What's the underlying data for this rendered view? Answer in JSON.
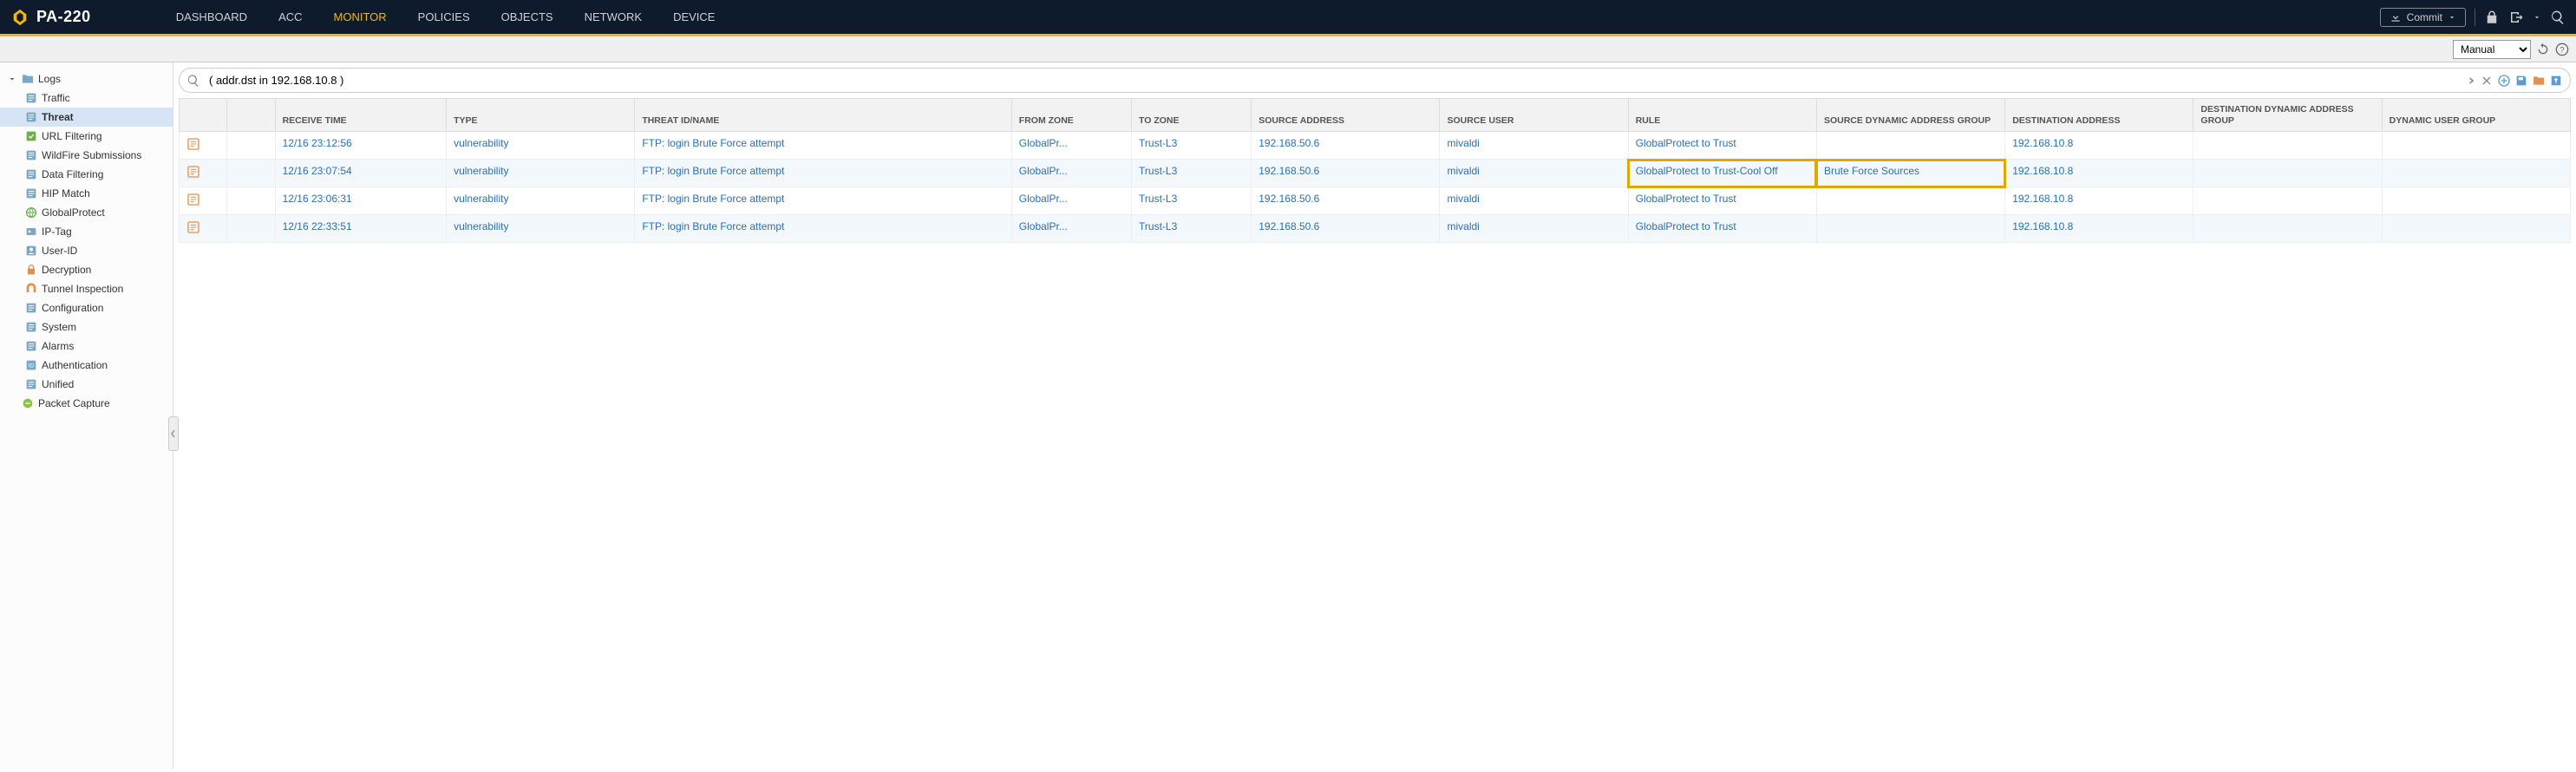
{
  "brand": {
    "name": "PA-220"
  },
  "nav": {
    "items": [
      "DASHBOARD",
      "ACC",
      "MONITOR",
      "POLICIES",
      "OBJECTS",
      "NETWORK",
      "DEVICE"
    ],
    "active_index": 2,
    "commit_label": "Commit"
  },
  "toolbar": {
    "mode": "Manual"
  },
  "sidebar": {
    "root": "Logs",
    "items": [
      {
        "label": "Traffic",
        "icon": "log",
        "selected": false
      },
      {
        "label": "Threat",
        "icon": "log",
        "selected": true
      },
      {
        "label": "URL Filtering",
        "icon": "url",
        "selected": false
      },
      {
        "label": "WildFire Submissions",
        "icon": "log",
        "selected": false
      },
      {
        "label": "Data Filtering",
        "icon": "log",
        "selected": false
      },
      {
        "label": "HIP Match",
        "icon": "log",
        "selected": false
      },
      {
        "label": "GlobalProtect",
        "icon": "globe",
        "selected": false
      },
      {
        "label": "IP-Tag",
        "icon": "iptag",
        "selected": false
      },
      {
        "label": "User-ID",
        "icon": "user",
        "selected": false
      },
      {
        "label": "Decryption",
        "icon": "lock",
        "selected": false
      },
      {
        "label": "Tunnel Inspection",
        "icon": "tunnel",
        "selected": false
      },
      {
        "label": "Configuration",
        "icon": "log",
        "selected": false
      },
      {
        "label": "System",
        "icon": "log",
        "selected": false
      },
      {
        "label": "Alarms",
        "icon": "log",
        "selected": false
      },
      {
        "label": "Authentication",
        "icon": "auth",
        "selected": false
      },
      {
        "label": "Unified",
        "icon": "log",
        "selected": false
      }
    ],
    "packet_capture": "Packet Capture"
  },
  "filter": {
    "query": "( addr.dst in 192.168.10.8 )"
  },
  "table": {
    "columns": [
      "",
      "",
      "RECEIVE TIME",
      "TYPE",
      "THREAT ID/NAME",
      "FROM ZONE",
      "TO ZONE",
      "SOURCE ADDRESS",
      "SOURCE USER",
      "RULE",
      "SOURCE DYNAMIC ADDRESS GROUP",
      "DESTINATION ADDRESS",
      "DESTINATION DYNAMIC ADDRESS GROUP",
      "DYNAMIC USER GROUP"
    ],
    "col_widths": [
      "28px",
      "28px",
      "100px",
      "110px",
      "220px",
      "70px",
      "70px",
      "110px",
      "110px",
      "110px",
      "110px",
      "110px",
      "110px",
      "110px"
    ],
    "rows": [
      {
        "receive": "12/16 23:12:56",
        "type": "vulnerability",
        "threat": "FTP: login Brute Force attempt",
        "from": "GlobalPr...",
        "to": "Trust-L3",
        "src": "192.168.50.6",
        "user": "mivaldi",
        "rule": "GlobalProtect to Trust",
        "sdag": "",
        "dst": "192.168.10.8",
        "ddag": "",
        "dug": "",
        "hi": false
      },
      {
        "receive": "12/16 23:07:54",
        "type": "vulnerability",
        "threat": "FTP: login Brute Force attempt",
        "from": "GlobalPr...",
        "to": "Trust-L3",
        "src": "192.168.50.6",
        "user": "mivaldi",
        "rule": "GlobalProtect to Trust-Cool Off",
        "sdag": "Brute Force Sources",
        "dst": "192.168.10.8",
        "ddag": "",
        "dug": "",
        "hi": true
      },
      {
        "receive": "12/16 23:06:31",
        "type": "vulnerability",
        "threat": "FTP: login Brute Force attempt",
        "from": "GlobalPr...",
        "to": "Trust-L3",
        "src": "192.168.50.6",
        "user": "mivaldi",
        "rule": "GlobalProtect to Trust",
        "sdag": "",
        "dst": "192.168.10.8",
        "ddag": "",
        "dug": "",
        "hi": false
      },
      {
        "receive": "12/16 22:33:51",
        "type": "vulnerability",
        "threat": "FTP: login Brute Force attempt",
        "from": "GlobalPr...",
        "to": "Trust-L3",
        "src": "192.168.50.6",
        "user": "mivaldi",
        "rule": "GlobalProtect to Trust",
        "sdag": "",
        "dst": "192.168.10.8",
        "ddag": "",
        "dug": "",
        "hi": false
      }
    ]
  },
  "colors": {
    "accent": "#f5b800",
    "link": "#2a6fb5",
    "topbar": "#0e1b2c",
    "highlight": "#e0a800",
    "row_alt": "#f3f8fc"
  }
}
